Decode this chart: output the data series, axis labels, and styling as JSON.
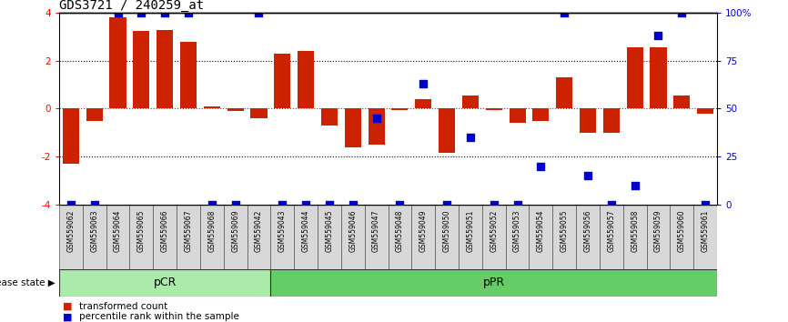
{
  "title": "GDS3721 / 240259_at",
  "samples": [
    "GSM559062",
    "GSM559063",
    "GSM559064",
    "GSM559065",
    "GSM559066",
    "GSM559067",
    "GSM559068",
    "GSM559069",
    "GSM559042",
    "GSM559043",
    "GSM559044",
    "GSM559045",
    "GSM559046",
    "GSM559047",
    "GSM559048",
    "GSM559049",
    "GSM559050",
    "GSM559051",
    "GSM559052",
    "GSM559053",
    "GSM559054",
    "GSM559055",
    "GSM559056",
    "GSM559057",
    "GSM559058",
    "GSM559059",
    "GSM559060",
    "GSM559061"
  ],
  "bar_values": [
    -2.3,
    -0.5,
    3.8,
    3.25,
    3.3,
    2.8,
    0.1,
    -0.1,
    -0.4,
    2.3,
    2.4,
    -0.7,
    -1.6,
    -1.5,
    -0.05,
    0.4,
    -1.85,
    0.55,
    -0.05,
    -0.6,
    -0.5,
    1.3,
    -1.0,
    -1.0,
    2.55,
    2.55,
    0.55,
    -0.2
  ],
  "percentile_values": [
    0,
    0,
    100,
    100,
    100,
    100,
    0,
    0,
    100,
    0,
    0,
    0,
    0,
    45,
    0,
    63,
    0,
    35,
    0,
    0,
    20,
    100,
    15,
    0,
    10,
    88,
    100,
    0
  ],
  "pCR_count": 9,
  "pPR_count": 19,
  "ylim": [
    -4,
    4
  ],
  "bar_color": "#cc2200",
  "dot_color": "#0000cc",
  "background_color": "#ffffff",
  "pCR_color": "#aaeaaa",
  "pPR_color": "#66cc66",
  "right_axis_color": "#0000cc",
  "dot_size": 30,
  "legend_bar_label": "transformed count",
  "legend_dot_label": "percentile rank within the sample",
  "disease_state_label": "disease state"
}
